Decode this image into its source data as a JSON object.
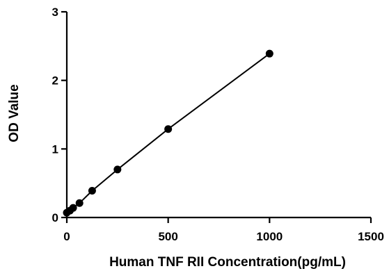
{
  "chart_data": {
    "type": "scatter",
    "title": "",
    "xlabel": "Human TNF RII Concentration(pg/mL)",
    "ylabel": "OD Value",
    "xlim": [
      0,
      1500
    ],
    "ylim": [
      0,
      3
    ],
    "x_ticks": [
      0,
      500,
      1000,
      1500
    ],
    "x_tick_labels": [
      "0",
      "500",
      "1000",
      "1500"
    ],
    "y_ticks": [
      0,
      1,
      2,
      3
    ],
    "y_tick_labels": [
      "0",
      "1",
      "2",
      "3"
    ],
    "grid": false,
    "legend": "none",
    "fit_line": true,
    "series": [
      {
        "color": "#000000",
        "x": [
          0,
          15.6,
          31.25,
          62.5,
          125,
          250,
          500,
          1000
        ],
        "y": [
          0.07,
          0.1,
          0.14,
          0.21,
          0.39,
          0.7,
          1.29,
          2.39
        ]
      }
    ]
  }
}
